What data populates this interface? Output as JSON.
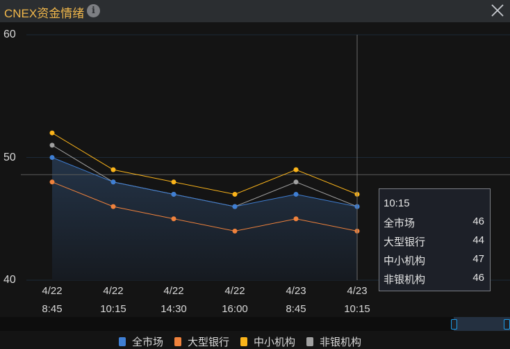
{
  "header": {
    "title": "CNEX资金情绪",
    "info_icon": "i",
    "close_icon": "✕"
  },
  "tooltip": {
    "time": "10:15",
    "rows": [
      {
        "label": "全市场",
        "value": "46"
      },
      {
        "label": "大型银行",
        "value": "44"
      },
      {
        "label": "中小机构",
        "value": "47"
      },
      {
        "label": "非银机构",
        "value": "46"
      }
    ]
  },
  "legend": [
    {
      "label": "全市场",
      "color": "#3f7fd4"
    },
    {
      "label": "大型银行",
      "color": "#f0823c"
    },
    {
      "label": "中小机构",
      "color": "#fbb41a"
    },
    {
      "label": "非银机构",
      "color": "#a0a0a0"
    }
  ],
  "chart_data": {
    "type": "line",
    "title": "CNEX资金情绪",
    "xlabel": "",
    "ylabel": "",
    "ylim": [
      40,
      60
    ],
    "yticks": [
      "60",
      "50",
      "40"
    ],
    "categories": [
      "4/22 8:45",
      "4/22 10:15",
      "4/22 14:30",
      "4/22 16:00",
      "4/23 8:45",
      "4/23 10:15"
    ],
    "x_labels": [
      {
        "date": "4/22",
        "time": "8:45"
      },
      {
        "date": "4/22",
        "time": "10:15"
      },
      {
        "date": "4/22",
        "time": "14:30"
      },
      {
        "date": "4/22",
        "time": "16:00"
      },
      {
        "date": "4/23",
        "time": "8:45"
      },
      {
        "date": "4/23",
        "time": "10:15"
      }
    ],
    "series": [
      {
        "name": "全市场",
        "color": "#3f7fd4",
        "values": [
          50,
          48,
          47,
          46,
          47,
          46
        ],
        "area": true
      },
      {
        "name": "大型银行",
        "color": "#f0823c",
        "values": [
          48,
          46,
          45,
          44,
          45,
          44
        ]
      },
      {
        "name": "中小机构",
        "color": "#fbb41a",
        "values": [
          52,
          49,
          48,
          47,
          49,
          47
        ]
      },
      {
        "name": "非银机构",
        "color": "#a0a0a0",
        "values": [
          51,
          48,
          47,
          46,
          48,
          46
        ]
      }
    ],
    "grid": true,
    "legend_position": "bottom",
    "crosshair": {
      "x_index": 5,
      "y_value": 48.6
    }
  }
}
